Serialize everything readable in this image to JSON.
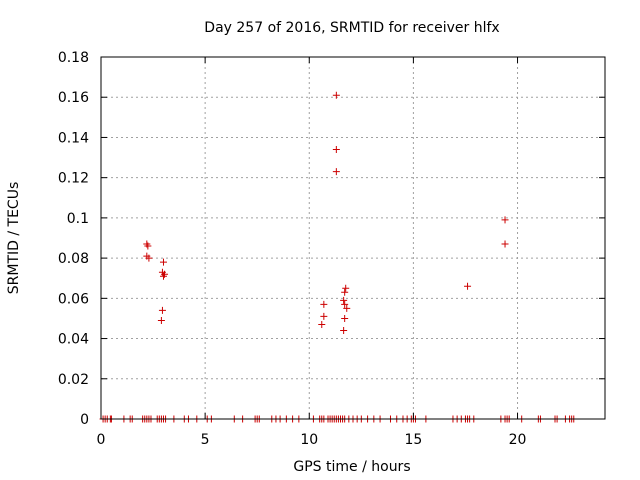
{
  "chart_data": {
    "type": "scatter",
    "title": "Day 257 of 2016, SRMTID for receiver hlfx",
    "xlabel": "GPS time / hours",
    "ylabel": "SRMTID / TECUs",
    "xlim": [
      0,
      24.2
    ],
    "ylim": [
      0,
      0.18
    ],
    "x_ticks": [
      0,
      5,
      10,
      15,
      20
    ],
    "x_tick_labels": [
      "0",
      "5",
      "10",
      "15",
      "20"
    ],
    "y_ticks": [
      0,
      0.02,
      0.04,
      0.06,
      0.08,
      0.1,
      0.12,
      0.14,
      0.16,
      0.18
    ],
    "y_tick_labels": [
      "0",
      "0.02",
      "0.04",
      "0.06",
      "0.08",
      "0.1",
      "0.12",
      "0.14",
      "0.16",
      "0.18"
    ],
    "grid": true,
    "marker": "+",
    "series": [
      {
        "name": "SRMTID",
        "color": "#cc0000",
        "points": [
          [
            2.2,
            0.087
          ],
          [
            2.25,
            0.086
          ],
          [
            2.2,
            0.081
          ],
          [
            2.3,
            0.08
          ],
          [
            3.0,
            0.078
          ],
          [
            2.95,
            0.073
          ],
          [
            3.05,
            0.072
          ],
          [
            3.0,
            0.071
          ],
          [
            2.95,
            0.054
          ],
          [
            2.9,
            0.049
          ],
          [
            11.3,
            0.161
          ],
          [
            11.3,
            0.134
          ],
          [
            11.3,
            0.123
          ],
          [
            10.7,
            0.057
          ],
          [
            10.7,
            0.051
          ],
          [
            10.6,
            0.047
          ],
          [
            11.75,
            0.065
          ],
          [
            11.7,
            0.063
          ],
          [
            11.65,
            0.059
          ],
          [
            11.7,
            0.057
          ],
          [
            11.8,
            0.055
          ],
          [
            11.7,
            0.05
          ],
          [
            11.65,
            0.044
          ],
          [
            17.6,
            0.066
          ],
          [
            19.4,
            0.099
          ],
          [
            19.4,
            0.087
          ],
          [
            0.1,
            0
          ],
          [
            0.2,
            0
          ],
          [
            0.3,
            0
          ],
          [
            0.45,
            0
          ],
          [
            0.5,
            0
          ],
          [
            1.1,
            0
          ],
          [
            1.4,
            0
          ],
          [
            1.5,
            0
          ],
          [
            2.0,
            0
          ],
          [
            2.1,
            0
          ],
          [
            2.2,
            0
          ],
          [
            2.3,
            0
          ],
          [
            2.4,
            0
          ],
          [
            2.7,
            0
          ],
          [
            2.8,
            0
          ],
          [
            2.9,
            0
          ],
          [
            3.0,
            0
          ],
          [
            3.1,
            0
          ],
          [
            3.5,
            0
          ],
          [
            4.0,
            0
          ],
          [
            4.2,
            0
          ],
          [
            4.6,
            0
          ],
          [
            5.1,
            0
          ],
          [
            5.3,
            0
          ],
          [
            6.4,
            0
          ],
          [
            6.8,
            0
          ],
          [
            7.4,
            0
          ],
          [
            7.5,
            0
          ],
          [
            7.6,
            0
          ],
          [
            8.2,
            0
          ],
          [
            8.4,
            0
          ],
          [
            8.6,
            0
          ],
          [
            8.9,
            0
          ],
          [
            9.2,
            0
          ],
          [
            9.5,
            0
          ],
          [
            10.2,
            0
          ],
          [
            10.5,
            0
          ],
          [
            10.6,
            0
          ],
          [
            10.7,
            0
          ],
          [
            10.9,
            0
          ],
          [
            11.0,
            0
          ],
          [
            11.1,
            0
          ],
          [
            11.2,
            0
          ],
          [
            11.3,
            0
          ],
          [
            11.4,
            0
          ],
          [
            11.5,
            0
          ],
          [
            11.6,
            0
          ],
          [
            11.7,
            0
          ],
          [
            11.9,
            0
          ],
          [
            12.1,
            0
          ],
          [
            12.3,
            0
          ],
          [
            12.5,
            0
          ],
          [
            12.8,
            0
          ],
          [
            13.1,
            0
          ],
          [
            13.4,
            0
          ],
          [
            13.9,
            0
          ],
          [
            14.2,
            0
          ],
          [
            14.5,
            0
          ],
          [
            14.7,
            0
          ],
          [
            14.9,
            0
          ],
          [
            15.0,
            0
          ],
          [
            15.1,
            0
          ],
          [
            15.6,
            0
          ],
          [
            16.9,
            0
          ],
          [
            17.1,
            0
          ],
          [
            17.3,
            0
          ],
          [
            17.5,
            0
          ],
          [
            17.6,
            0
          ],
          [
            17.7,
            0
          ],
          [
            17.9,
            0
          ],
          [
            19.2,
            0
          ],
          [
            19.4,
            0
          ],
          [
            19.5,
            0
          ],
          [
            19.6,
            0
          ],
          [
            20.2,
            0
          ],
          [
            21.0,
            0
          ],
          [
            21.1,
            0
          ],
          [
            21.8,
            0
          ],
          [
            21.9,
            0
          ],
          [
            22.3,
            0
          ],
          [
            22.5,
            0
          ],
          [
            22.6,
            0
          ],
          [
            22.7,
            0
          ]
        ]
      }
    ]
  }
}
